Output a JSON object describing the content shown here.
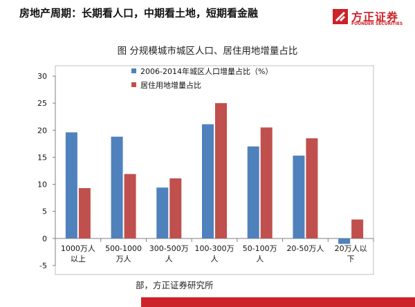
{
  "header": {
    "title": "房地产周期：长期看人口，中期看土地，短期看金融"
  },
  "logo": {
    "name_cn": "方正证券",
    "name_en": "FOUNDER SECURITIES",
    "brand_color": "#cc2229"
  },
  "chart_data": {
    "type": "bar",
    "title": "图  分规模城市城区人口、居住用地增量占比",
    "categories": [
      "1000万人以上",
      "500-1000万人",
      "300-500万人",
      "100-300万人",
      "50-100万人",
      "20-50万人",
      "20万人以下"
    ],
    "category_lines": [
      [
        "1000万人",
        "以上"
      ],
      [
        "500-1000",
        "万人"
      ],
      [
        "300-500万",
        "人"
      ],
      [
        "100-300万",
        "人"
      ],
      [
        "50-100万",
        "人"
      ],
      [
        "20-50万人",
        ""
      ],
      [
        "20万人以",
        "下"
      ]
    ],
    "series": [
      {
        "name": "2006-2014年城区人口增量占比（%）",
        "color": "#4f81bd",
        "values": [
          19.6,
          18.8,
          9.4,
          21.1,
          17.0,
          15.3,
          -1.0
        ]
      },
      {
        "name": "居住用地增量占比",
        "color": "#c0504d",
        "values": [
          9.3,
          11.9,
          11.1,
          25.0,
          20.5,
          18.5,
          3.5
        ]
      }
    ],
    "ylim": [
      -5,
      30
    ],
    "yticks": [
      "-5",
      "0",
      "5",
      "10",
      "15",
      "20",
      "25",
      "30"
    ],
    "xlabel": "",
    "ylabel": "",
    "grid": false,
    "legend_position": "top-left"
  },
  "source": {
    "text": "部，方正证券研究所"
  }
}
